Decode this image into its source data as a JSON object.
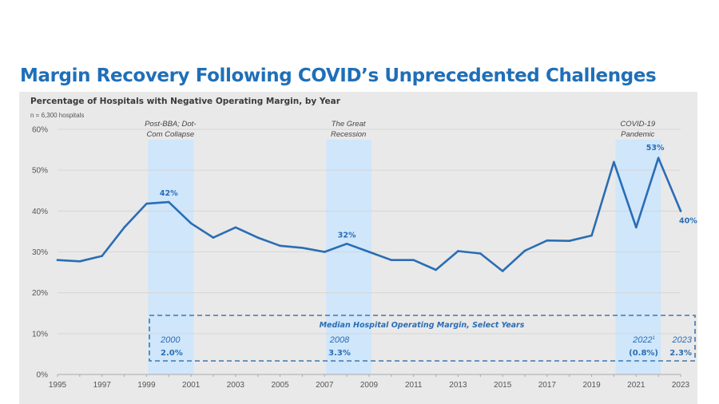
{
  "slide": {
    "title": "Margin Recovery Following COVID’s Unprecedented Challenges"
  },
  "chart_data": {
    "type": "line",
    "title": "Percentage of Hospitals with Negative Operating Margin, by Year",
    "note": "n = 6,300 hospitals",
    "xlabel": "",
    "ylabel": "",
    "xlim": [
      1995,
      2023
    ],
    "ylim": [
      0,
      60
    ],
    "grid": true,
    "x": [
      1995,
      1996,
      1997,
      1998,
      1999,
      2000,
      2001,
      2002,
      2003,
      2004,
      2005,
      2006,
      2007,
      2008,
      2009,
      2010,
      2011,
      2012,
      2013,
      2014,
      2015,
      2016,
      2017,
      2018,
      2019,
      2020,
      2021,
      2022,
      2023
    ],
    "series": [
      {
        "name": "Hospitals with negative operating margin",
        "color": "#2a6db5",
        "values": [
          28,
          27.7,
          29,
          36,
          41.8,
          42.2,
          37,
          33.5,
          36,
          33.5,
          31.5,
          31,
          30,
          32,
          30,
          28,
          28,
          25.6,
          30.2,
          29.6,
          25.3,
          30.3,
          32.8,
          32.7,
          34,
          52,
          36,
          53,
          40
        ]
      }
    ],
    "y_ticks": [
      {
        "value": 0,
        "label": "0%"
      },
      {
        "value": 10,
        "label": "10%"
      },
      {
        "value": 20,
        "label": "20%"
      },
      {
        "value": 30,
        "label": "30%"
      },
      {
        "value": 40,
        "label": "40%"
      },
      {
        "value": 50,
        "label": "50%"
      },
      {
        "value": 60,
        "label": "60%"
      }
    ],
    "x_ticks": [
      {
        "value": 1995,
        "label": "1995"
      },
      {
        "value": 1997,
        "label": "1997"
      },
      {
        "value": 1999,
        "label": "1999"
      },
      {
        "value": 2001,
        "label": "2001"
      },
      {
        "value": 2003,
        "label": "2003"
      },
      {
        "value": 2005,
        "label": "2005"
      },
      {
        "value": 2007,
        "label": "2007"
      },
      {
        "value": 2009,
        "label": "2009"
      },
      {
        "value": 2011,
        "label": "2011"
      },
      {
        "value": 2013,
        "label": "2013"
      },
      {
        "value": 2015,
        "label": "2015"
      },
      {
        "value": 2017,
        "label": "2017"
      },
      {
        "value": 2019,
        "label": "2019"
      },
      {
        "value": 2021,
        "label": "2021"
      },
      {
        "value": 2023,
        "label": "2023"
      }
    ],
    "shaded_periods": [
      {
        "start": 1999,
        "end": 2001,
        "label_lines": [
          "Post-BBA; Dot-",
          "Com Collapse"
        ]
      },
      {
        "start": 2007,
        "end": 2009,
        "label_lines": [
          "The Great",
          "Recession"
        ]
      },
      {
        "start": 2020,
        "end": 2022,
        "label_lines": [
          "COVID-19",
          "Pandemic"
        ]
      }
    ],
    "data_labels": [
      {
        "x": 2000,
        "value": 42.2,
        "label": "42%"
      },
      {
        "x": 2008,
        "value": 32,
        "label": "32%"
      },
      {
        "x": 2022,
        "value": 53,
        "label": "53%"
      },
      {
        "x": 2023,
        "value": 40,
        "label": "40%"
      }
    ],
    "annotation_box": {
      "title": "Median Hospital Operating Margin, Select Years",
      "entries": [
        {
          "year": "2000",
          "superscript": "",
          "value": "2.0%"
        },
        {
          "year": "2008",
          "superscript": "",
          "value": "3.3%"
        },
        {
          "year": "2022",
          "superscript": "1",
          "value": "(0.8%)"
        },
        {
          "year": "2023",
          "superscript": "",
          "value": "2.3%"
        }
      ]
    },
    "colors": {
      "line": "#2a6db5",
      "band": "#cfe6fb",
      "panel": "#e9e9e9",
      "grid": "#d6d6d6",
      "title": "#1f6fb8",
      "box_border": "#3d78b0"
    }
  }
}
